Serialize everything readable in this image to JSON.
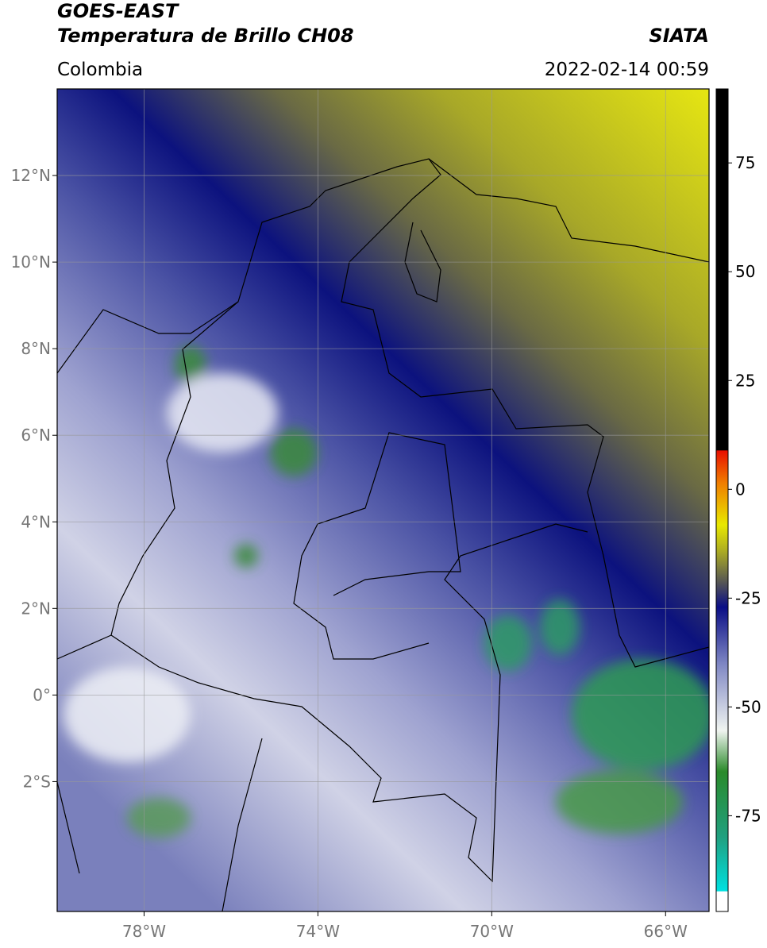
{
  "header": {
    "title": "GOES-EAST",
    "subtitle": "Temperatura de Brillo CH08",
    "source": "SIATA",
    "region": "Colombia",
    "datetime": "2022-02-14 00:59"
  },
  "map": {
    "xlim": [
      -80,
      -65
    ],
    "ylim": [
      -5,
      14
    ],
    "xticks": [
      {
        "value": -78,
        "label": "78°W"
      },
      {
        "value": -74,
        "label": "74°W"
      },
      {
        "value": -70,
        "label": "70°W"
      },
      {
        "value": -66,
        "label": "66°W"
      }
    ],
    "yticks": [
      {
        "value": 12,
        "label": "12°N"
      },
      {
        "value": 10,
        "label": "10°N"
      },
      {
        "value": 8,
        "label": "8°N"
      },
      {
        "value": 6,
        "label": "6°N"
      },
      {
        "value": 4,
        "label": "4°N"
      },
      {
        "value": 2,
        "label": "2°N"
      },
      {
        "value": 0,
        "label": "0°"
      },
      {
        "value": -2,
        "label": "2°S"
      }
    ],
    "grid": true
  },
  "colorbar": {
    "lim": [
      -97,
      92
    ],
    "ticks": [
      75,
      50,
      25,
      0,
      -25,
      -50,
      -75
    ]
  }
}
